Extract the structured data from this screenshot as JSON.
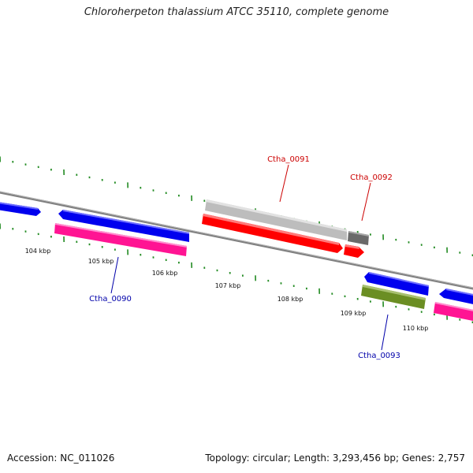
{
  "title": "Chloroherpeton thalassium ATCC 35110, complete genome",
  "footer": {
    "accession": "Accession: NC_011026",
    "stats": "Topology: circular; Length: 3,293,456 bp; Genes: 2,757"
  },
  "map": {
    "tick_labels": [
      "104 kbp",
      "105 kbp",
      "106 kbp",
      "107 kbp",
      "108 kbp",
      "109 kbp",
      "110 kbp"
    ],
    "gene_labels": [
      {
        "name": "Ctha_0091",
        "color": "#cc0000"
      },
      {
        "name": "Ctha_0092",
        "color": "#cc0000"
      },
      {
        "name": "Ctha_0090",
        "color": "#0000aa"
      },
      {
        "name": "Ctha_0093",
        "color": "#0000aa"
      }
    ],
    "colors": {
      "backbone": "#808080",
      "cds_forward": "#0000ee",
      "cds_reverse": "#ff0000",
      "rna_pink": "#ff1493",
      "gray_feature": "#bbbbbb",
      "dark_gray_feature": "#666666",
      "green_feature": "#6b8e23",
      "ticks": "#228b22"
    }
  }
}
